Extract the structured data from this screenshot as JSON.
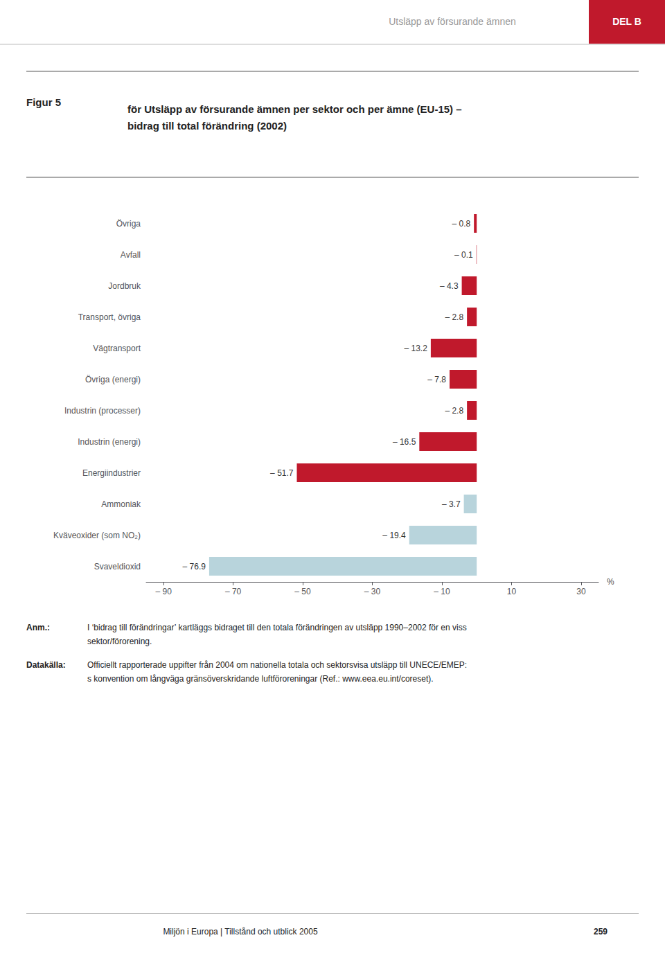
{
  "chart_data": {
    "type": "bar",
    "orientation": "horizontal",
    "header": "Utsläpp av försurande ämnen",
    "header_color": "#999999",
    "section": "DEL B",
    "section_color": "#c0192c",
    "title_label": "Figur 5",
    "title": "för Utsläpp av försurande ämnen per sektor och per ämne (EU-15) –\nbidrag till total förändring (2002)",
    "categories": [
      "Övriga",
      "Avfall",
      "Jordbruk",
      "Transport, övriga",
      "Vägtransport",
      "Övriga (energi)",
      "Industrin (processer)",
      "Industrin (energi)",
      "Energiindustrier",
      "Ammoniak",
      "Kväveoxider (som NO₂)",
      "Svaveldioxid"
    ],
    "values": [
      -0.8,
      -0.1,
      -4.3,
      -2.8,
      -13.2,
      -7.8,
      -2.8,
      -16.5,
      -51.7,
      -3.7,
      -19.4,
      -76.9
    ],
    "colors": [
      "#c0192c",
      "#c0192c",
      "#c0192c",
      "#c0192c",
      "#c0192c",
      "#c0192c",
      "#c0192c",
      "#c0192c",
      "#c0192c",
      "#b8d4dc",
      "#b8d4dc",
      "#b8d4dc"
    ],
    "data_labels": true,
    "value_labels": [
      "– 0.8",
      "– 0.1",
      "– 4.3",
      "– 2.8",
      "– 13.2",
      "– 7.8",
      "– 2.8",
      "– 16.5",
      "– 51.7",
      "– 3.7",
      "– 19.4",
      "– 76.9"
    ],
    "xlim": [
      -95,
      35
    ],
    "xticks": [
      {
        "value": -90,
        "label": "– 90"
      },
      {
        "value": -70,
        "label": "– 70"
      },
      {
        "value": -50,
        "label": "– 50"
      },
      {
        "value": -30,
        "label": "– 30"
      },
      {
        "value": -10,
        "label": "– 10"
      },
      10,
      30
    ],
    "xlabel": "%",
    "grid": false,
    "notes": [
      {
        "label": "Anm.:",
        "lines": [
          "I ‘bidrag till förändringar’ kartläggs bidraget till den totala förändringen av utsläpp 1990–2002 för en viss",
          "sektor/förorening."
        ]
      },
      {
        "label": "Datakälla:",
        "lines": [
          "Officiellt rapporterade uppifter från 2004 om nationella totala och sektorsvisa utsläpp till UNECE/EMEP:",
          "s konvention om långväga gränsöverskridande luftföroreningar (Ref.: www.eea.eu.int/coreset)."
        ]
      }
    ],
    "footer": "Miljön i Europa | Tillstånd och utblick 2005",
    "page": "259"
  }
}
